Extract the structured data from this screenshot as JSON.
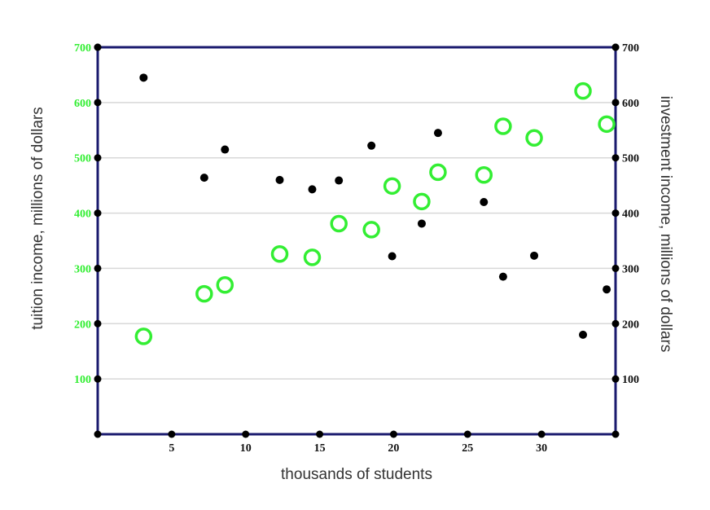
{
  "chart_data": {
    "type": "scatter",
    "xlabel": "thousands of students",
    "ylabel_left": "tuition income, millions of dollars",
    "ylabel_right": "investment income, millions of dollars",
    "xlim": [
      0,
      35
    ],
    "ylim": [
      0,
      700
    ],
    "x_ticks": [
      5,
      10,
      15,
      20,
      25,
      30
    ],
    "y_ticks_left": [
      100,
      200,
      300,
      400,
      500,
      600,
      700
    ],
    "y_ticks_right": [
      100,
      200,
      300,
      400,
      500,
      600,
      700
    ],
    "grid": true,
    "colors": {
      "frame": "#1a1a6e",
      "grid": "#d8d8d8",
      "tuition": "#33ee33",
      "investment": "#000000",
      "left_ticks": "#33ee33"
    },
    "series": [
      {
        "name": "tuition income",
        "axis": "left",
        "marker": "open-circle",
        "points": [
          [
            3.1,
            177
          ],
          [
            7.2,
            254
          ],
          [
            8.6,
            270
          ],
          [
            12.3,
            326
          ],
          [
            14.5,
            320
          ],
          [
            16.3,
            381
          ],
          [
            18.5,
            370
          ],
          [
            19.9,
            449
          ],
          [
            21.9,
            421
          ],
          [
            23.0,
            474
          ],
          [
            26.1,
            469
          ],
          [
            27.4,
            557
          ],
          [
            29.5,
            536
          ],
          [
            32.8,
            621
          ],
          [
            34.4,
            561
          ]
        ]
      },
      {
        "name": "investment income",
        "axis": "right",
        "marker": "filled-dot",
        "points": [
          [
            3.1,
            645
          ],
          [
            7.2,
            464
          ],
          [
            8.6,
            515
          ],
          [
            12.3,
            460
          ],
          [
            14.5,
            443
          ],
          [
            16.3,
            459
          ],
          [
            18.5,
            522
          ],
          [
            19.9,
            322
          ],
          [
            21.9,
            381
          ],
          [
            23.0,
            545
          ],
          [
            26.1,
            420
          ],
          [
            27.4,
            285
          ],
          [
            29.5,
            323
          ],
          [
            32.8,
            180
          ],
          [
            34.4,
            262
          ]
        ]
      }
    ]
  }
}
